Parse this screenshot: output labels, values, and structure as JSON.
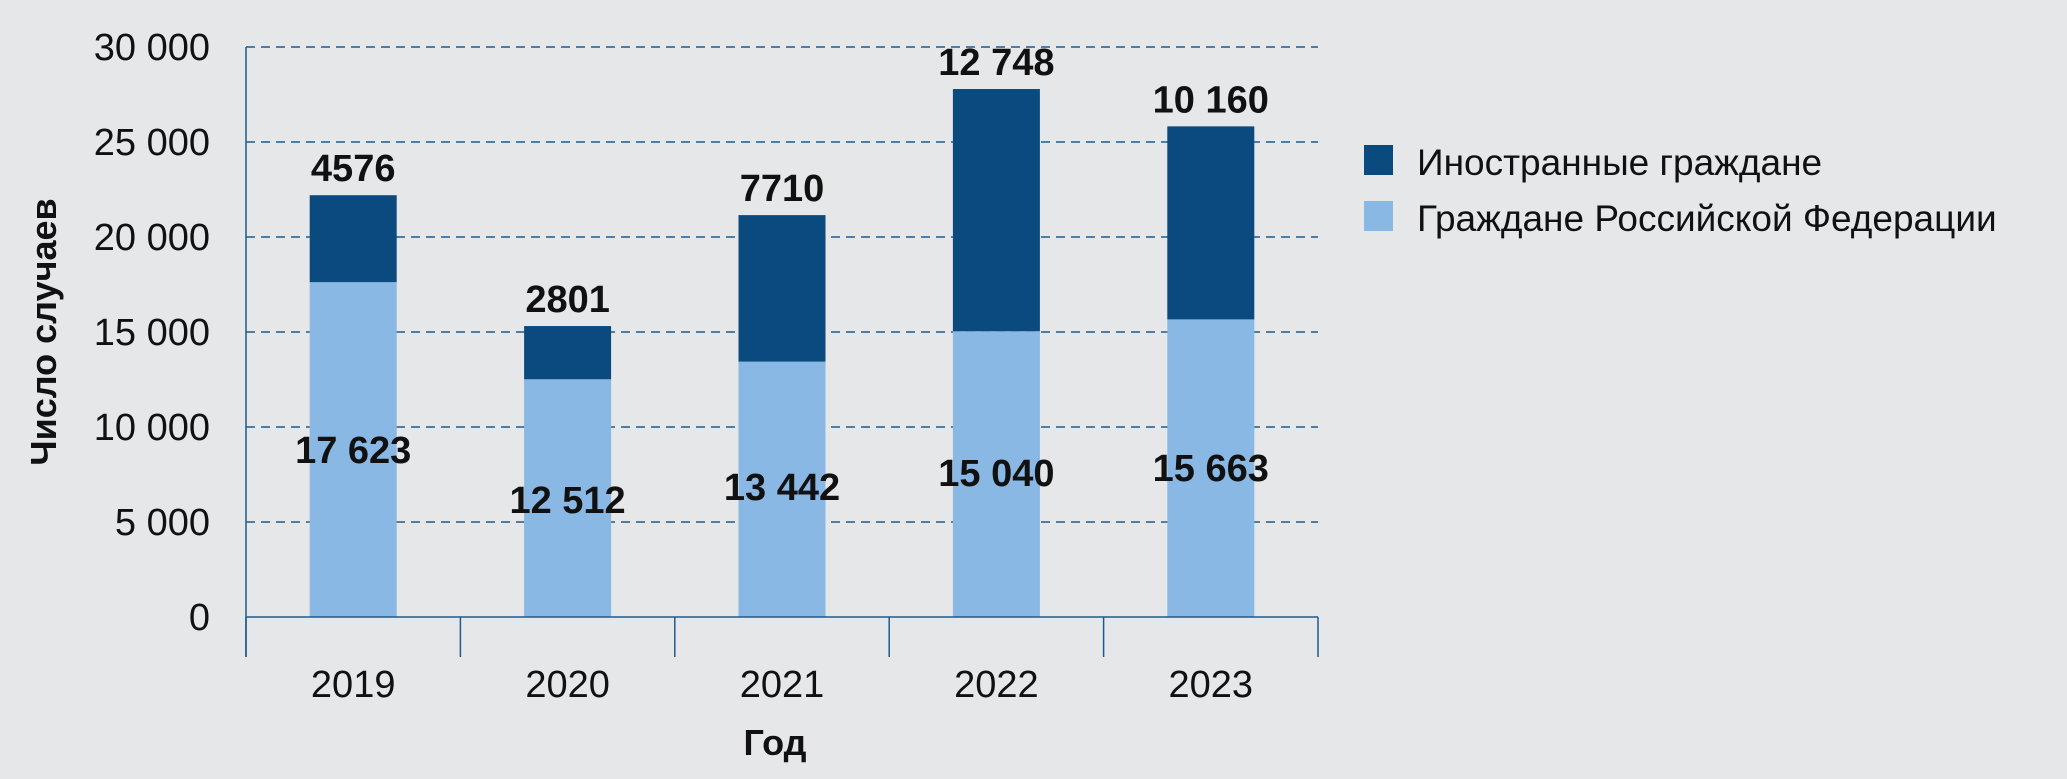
{
  "chart_data": {
    "type": "bar",
    "stacked": true,
    "title": "",
    "xlabel": "Год",
    "ylabel": "Число случаев",
    "ylim": [
      0,
      30000
    ],
    "yticks": [
      0,
      5000,
      10000,
      15000,
      20000,
      25000,
      30000
    ],
    "ytick_labels": [
      "0",
      "5 000",
      "10 000",
      "15 000",
      "20 000",
      "25 000",
      "30 000"
    ],
    "categories": [
      "2019",
      "2020",
      "2021",
      "2022",
      "2023"
    ],
    "grid": true,
    "legend_position": "right",
    "series": [
      {
        "name": "Граждане Российской Федерации",
        "color": "#88b8e3",
        "values": [
          17623,
          12512,
          13442,
          15040,
          15663
        ],
        "labels": [
          "17 623",
          "12 512",
          "13 442",
          "15 040",
          "15 663"
        ]
      },
      {
        "name": "Иностранные граждане",
        "color": "#0b4a7e",
        "values": [
          4576,
          2801,
          7710,
          12748,
          10160
        ],
        "labels": [
          "4576",
          "2801",
          "7710",
          "12 748",
          "10 160"
        ]
      }
    ]
  }
}
